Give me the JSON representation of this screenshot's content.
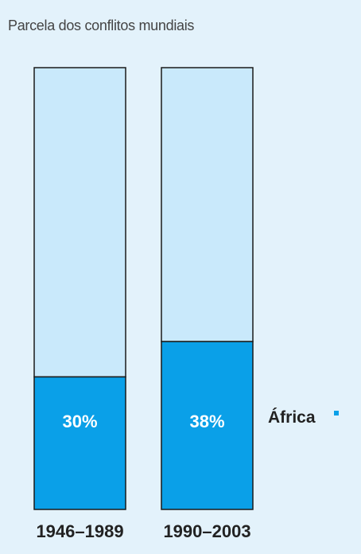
{
  "chart_data": {
    "type": "bar",
    "title": "Parcela dos conflitos mundiais",
    "categories": [
      "1946–1989",
      "1990–2003"
    ],
    "series": [
      {
        "name": "África",
        "values": [
          30,
          38
        ],
        "labels": [
          "30%",
          "38%"
        ],
        "color": "#0aa0e8"
      }
    ],
    "total": 100,
    "ylim": [
      0,
      100
    ],
    "stacked_remainder_color": "#c9e9fb",
    "legend": {
      "label": "África",
      "placement": "right"
    },
    "grid": false
  }
}
